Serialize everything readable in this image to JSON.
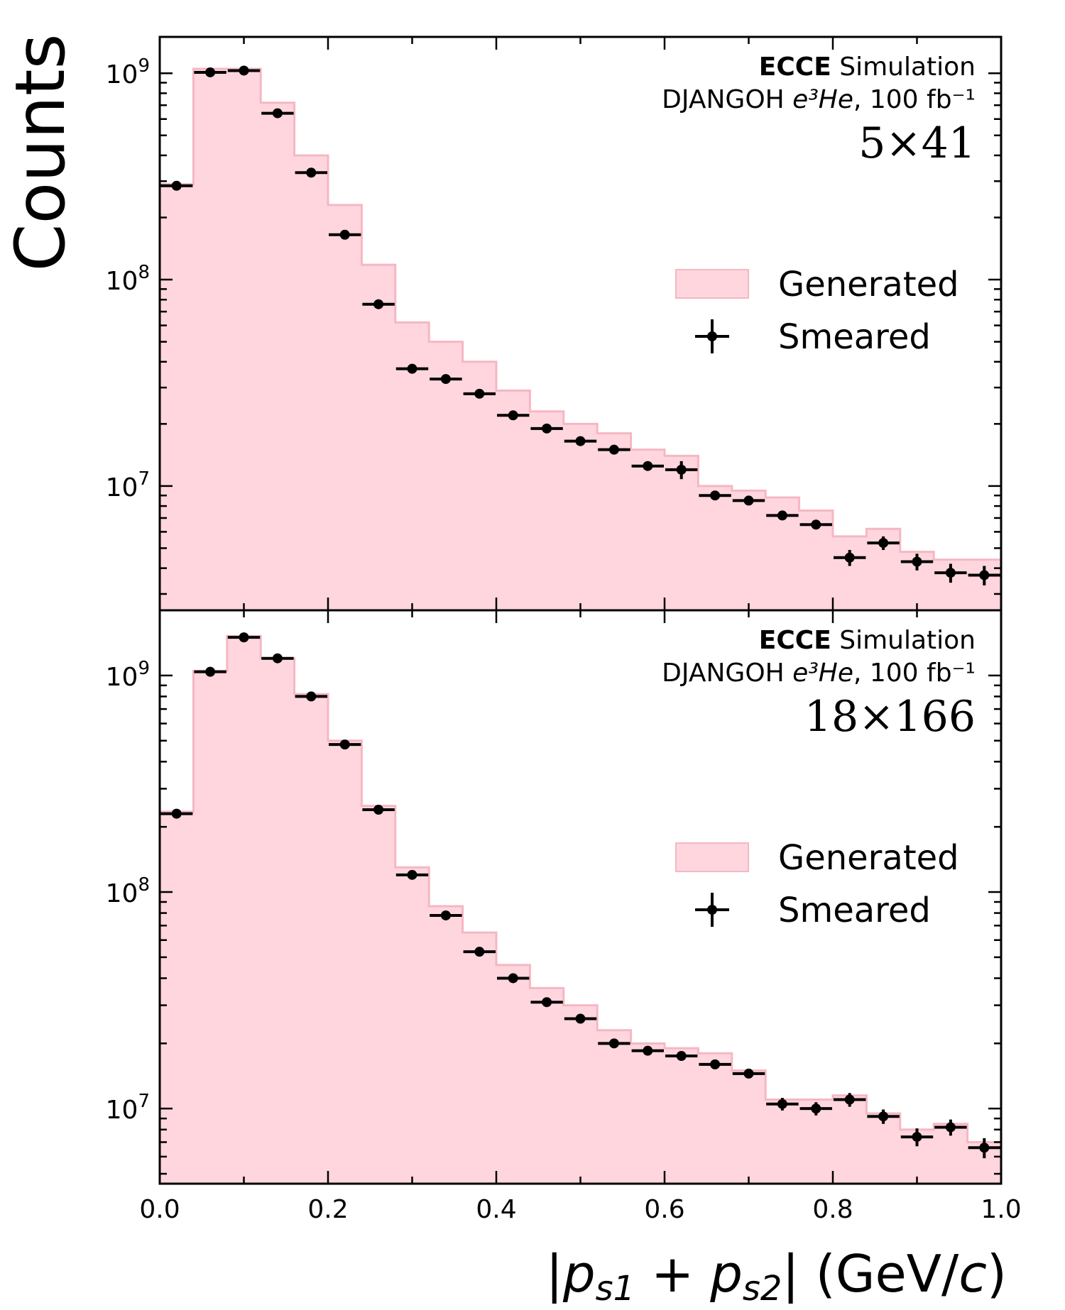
{
  "chart_data": [
    {
      "type": "bar",
      "title": "",
      "xlabel": "|p⃗s1 + p⃗s2| (GeV/c)",
      "ylabel": "Counts",
      "xlim": [
        0.0,
        1.0
      ],
      "ylim": [
        2500000,
        1500000000
      ],
      "yscale": "log",
      "bin_edges": [
        0.0,
        0.04,
        0.08,
        0.12,
        0.16,
        0.2,
        0.24,
        0.28,
        0.32,
        0.36,
        0.4,
        0.44,
        0.48,
        0.52,
        0.56,
        0.6,
        0.64,
        0.68,
        0.72,
        0.76,
        0.8,
        0.84,
        0.88,
        0.92,
        0.96,
        1.0
      ],
      "annotation": {
        "experiment": "ECCE",
        "label": "Simulation",
        "generator": "DJANGOH",
        "process": "e³He",
        "luminosity": "100 fb⁻¹",
        "energy": "5×41"
      },
      "legend": [
        "Generated",
        "Smeared"
      ],
      "series": [
        {
          "name": "Generated",
          "style": "filled-step",
          "values": [
            290000000,
            1050000000,
            1050000000,
            720000000,
            400000000,
            230000000,
            118000000,
            62000000,
            50000000,
            40000000,
            29000000,
            23000000,
            20000000,
            18000000,
            15000000,
            14000000,
            10000000,
            9500000,
            8800000,
            7600000,
            5700000,
            6200000,
            4800000,
            4400000,
            4400000
          ]
        },
        {
          "name": "Smeared",
          "style": "errorbar",
          "values": [
            285000000,
            1010000000,
            1030000000,
            640000000,
            330000000,
            165000000,
            76000000,
            37000000,
            33000000,
            28000000,
            22000000,
            19000000,
            16500000,
            15000000,
            12500000,
            12000000,
            9000000,
            8500000,
            7200000,
            6500000,
            4500000,
            5300000,
            4300000,
            3800000,
            3700000
          ],
          "errors": [
            0,
            0,
            0,
            0,
            0,
            0,
            0,
            0,
            0,
            0,
            0,
            0,
            0,
            0,
            0,
            1200000,
            0,
            0,
            0,
            0,
            400000,
            400000,
            400000,
            400000,
            400000
          ]
        }
      ]
    },
    {
      "type": "bar",
      "title": "",
      "xlabel": "|p⃗s1 + p⃗s2| (GeV/c)",
      "ylabel": "Counts",
      "xlim": [
        0.0,
        1.0
      ],
      "ylim": [
        4500000,
        2000000000
      ],
      "yscale": "log",
      "bin_edges": [
        0.0,
        0.04,
        0.08,
        0.12,
        0.16,
        0.2,
        0.24,
        0.28,
        0.32,
        0.36,
        0.4,
        0.44,
        0.48,
        0.52,
        0.56,
        0.6,
        0.64,
        0.68,
        0.72,
        0.76,
        0.8,
        0.84,
        0.88,
        0.92,
        0.96,
        1.0
      ],
      "annotation": {
        "experiment": "ECCE",
        "label": "Simulation",
        "generator": "DJANGOH",
        "process": "e³He",
        "luminosity": "100 fb⁻¹",
        "energy": "18×166"
      },
      "legend": [
        "Generated",
        "Smeared"
      ],
      "series": [
        {
          "name": "Generated",
          "style": "filled-step",
          "values": [
            235000000,
            1050000000,
            1520000000,
            1200000000,
            820000000,
            500000000,
            250000000,
            130000000,
            86000000,
            65000000,
            46000000,
            36000000,
            30000000,
            23000000,
            20000000,
            19000000,
            18000000,
            15000000,
            11000000,
            11000000,
            11500000,
            9500000,
            8000000,
            8500000,
            7000000
          ]
        },
        {
          "name": "Smeared",
          "style": "errorbar",
          "values": [
            230000000,
            1040000000,
            1500000000,
            1200000000,
            800000000,
            480000000,
            240000000,
            120000000,
            78000000,
            53000000,
            40000000,
            31000000,
            26000000,
            20000000,
            18500000,
            17500000,
            16000000,
            14500000,
            10500000,
            10000000,
            11000000,
            9200000,
            7400000,
            8200000,
            6600000
          ],
          "errors": [
            0,
            0,
            0,
            0,
            0,
            0,
            0,
            0,
            3000000,
            0,
            0,
            0,
            0,
            0,
            0,
            0,
            0,
            0,
            700000,
            700000,
            800000,
            700000,
            700000,
            700000,
            700000
          ]
        }
      ]
    }
  ],
  "axes": {
    "x_ticks": [
      "0.0",
      "0.2",
      "0.4",
      "0.6",
      "0.8",
      "1.0"
    ],
    "y_ticks_top": [
      {
        "base": "10",
        "exp": "7"
      },
      {
        "base": "10",
        "exp": "8"
      },
      {
        "base": "10",
        "exp": "9"
      }
    ],
    "y_ticks_bottom": [
      {
        "base": "10",
        "exp": "7"
      },
      {
        "base": "10",
        "exp": "8"
      },
      {
        "base": "10",
        "exp": "9"
      }
    ],
    "ylabel": "Counts",
    "xlabel": {
      "bar_left": "|",
      "p1": "p",
      "sub1": "s1",
      "plus": " + ",
      "p2": "p",
      "sub2": "s2",
      "bar_right": "|",
      "units": " (GeV/",
      "c": "c",
      "close": ")"
    }
  },
  "colors": {
    "generated_fill": "#ffd6dd",
    "generated_edge": "#f5b7c3",
    "smeared": "#000000"
  }
}
